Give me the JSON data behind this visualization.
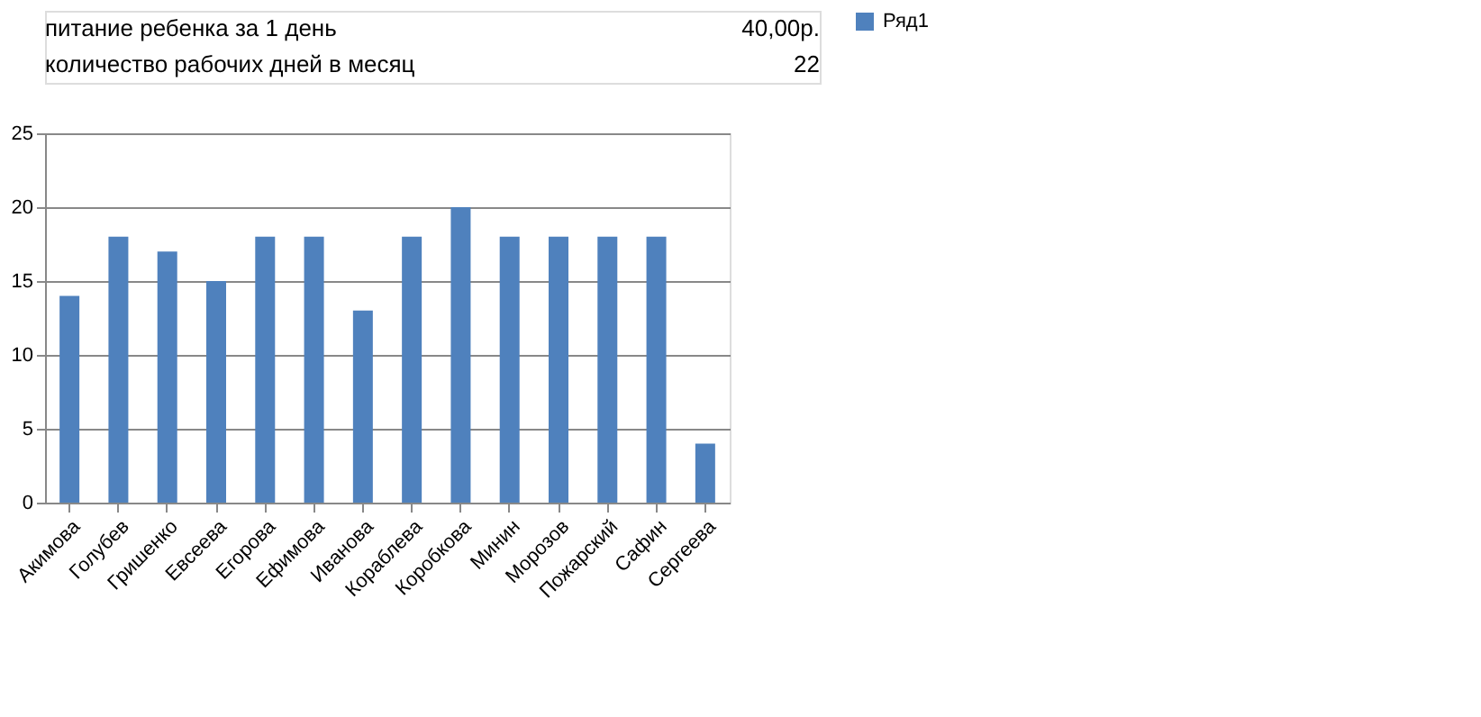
{
  "chart_data": {
    "type": "bar",
    "categories": [
      "Акимова",
      "Голубев",
      "Гришенко",
      "Евсеева",
      "Егорова",
      "Ефимова",
      "Иванова",
      "Кораблева",
      "Коробкова",
      "Минин",
      "Морозов",
      "Пожарский",
      "Сафин",
      "Сергеева"
    ],
    "series": [
      {
        "name": "Ряд1",
        "color": "#4f81bd",
        "values": [
          14,
          18,
          17,
          15,
          18,
          18,
          13,
          18,
          20,
          18,
          18,
          18,
          18,
          4
        ]
      }
    ],
    "ylim": [
      0,
      25
    ],
    "yticks": [
      0,
      5,
      10,
      15,
      20,
      25
    ],
    "grid": "y",
    "legend": "right",
    "annotations": [
      "питание ребенка за 1 день",
      "40,00р.",
      "количество рабочих дней в месяц",
      "22"
    ]
  }
}
